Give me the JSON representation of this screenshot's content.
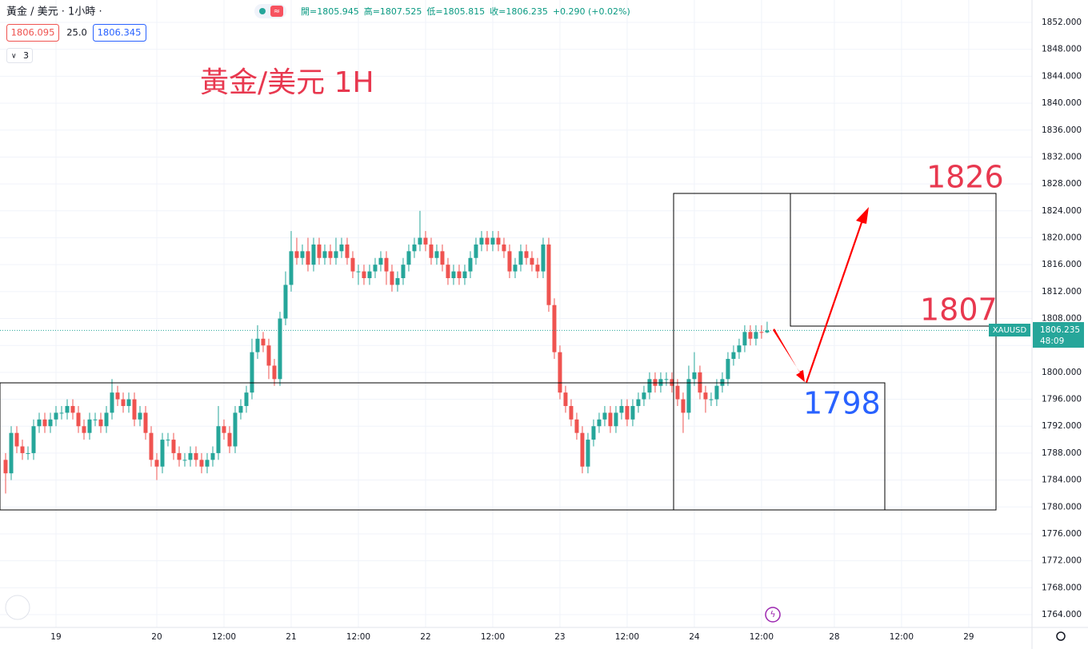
{
  "header": {
    "symbol": "黃金 / 美元 · 1小時 ·",
    "ohlc": [
      "開=1805.945",
      "高=1807.525",
      "低=1805.815",
      "收=1806.235",
      "+0.290 (+0.02%)"
    ],
    "bid": "1806.095",
    "spread": "25.0",
    "ask": "1806.345",
    "indicators": "3"
  },
  "chart_data": {
    "type": "candlestick",
    "up_color": "#26a69a",
    "down_color": "#ef5350",
    "grid": true,
    "annotations": {
      "title": "黃金/美元 1H",
      "target": 1826,
      "level": 1807,
      "support": 1798
    },
    "price_tag": {
      "symbol": "XAUUSD",
      "countdown": "48:09"
    },
    "xlim": [
      0,
      184.3
    ],
    "ylim": [
      1762.1,
      1855.33
    ],
    "xticks": [
      {
        "value": 10,
        "label": "19"
      },
      {
        "value": 28,
        "label": "20"
      },
      {
        "value": 40,
        "label": "12:00"
      },
      {
        "value": 52,
        "label": "21"
      },
      {
        "value": 64,
        "label": "12:00"
      },
      {
        "value": 76,
        "label": "22"
      },
      {
        "value": 88,
        "label": "12:00"
      },
      {
        "value": 100,
        "label": "23"
      },
      {
        "value": 112,
        "label": "12:00"
      },
      {
        "value": 124,
        "label": "24"
      },
      {
        "value": 136,
        "label": "12:00"
      },
      {
        "value": 149,
        "label": "28"
      },
      {
        "value": 161,
        "label": "12:00"
      },
      {
        "value": 173,
        "label": "29"
      }
    ],
    "yticks": [
      {
        "value": 1852,
        "label": "1852.000"
      },
      {
        "value": 1848,
        "label": "1848.000"
      },
      {
        "value": 1844,
        "label": "1844.000"
      },
      {
        "value": 1840,
        "label": "1840.000"
      },
      {
        "value": 1836,
        "label": "1836.000"
      },
      {
        "value": 1832,
        "label": "1832.000"
      },
      {
        "value": 1828,
        "label": "1828.000"
      },
      {
        "value": 1824,
        "label": "1824.000"
      },
      {
        "value": 1820,
        "label": "1820.000"
      },
      {
        "value": 1816,
        "label": "1816.000"
      },
      {
        "value": 1812,
        "label": "1812.000"
      },
      {
        "value": 1808,
        "label": "1808.000"
      },
      {
        "value": 1804,
        "label": "1804.000"
      },
      {
        "value": 1800,
        "label": "1800.000"
      },
      {
        "value": 1796,
        "label": "1796.000"
      },
      {
        "value": 1792,
        "label": "1792.000"
      },
      {
        "value": 1788,
        "label": "1788.000"
      },
      {
        "value": 1784,
        "label": "1784.000"
      },
      {
        "value": 1780,
        "label": "1780.000"
      },
      {
        "value": 1776,
        "label": "1776.000"
      },
      {
        "value": 1772,
        "label": "1772.000"
      },
      {
        "value": 1768,
        "label": "1768.000"
      },
      {
        "value": 1764,
        "label": "1764.000"
      }
    ],
    "x": [
      1,
      2,
      3,
      4,
      5,
      6,
      7,
      8,
      9,
      10,
      11,
      12,
      13,
      14,
      15,
      16,
      17,
      18,
      19,
      20,
      21,
      22,
      23,
      24,
      25,
      26,
      27,
      28,
      29,
      30,
      31,
      32,
      33,
      34,
      35,
      36,
      37,
      38,
      39,
      40,
      41,
      42,
      43,
      44,
      45,
      46,
      47,
      48,
      49,
      50,
      51,
      52,
      53,
      54,
      55,
      56,
      57,
      58,
      59,
      60,
      61,
      62,
      63,
      64,
      65,
      66,
      67,
      68,
      69,
      70,
      71,
      72,
      73,
      74,
      75,
      76,
      77,
      78,
      79,
      80,
      81,
      82,
      83,
      84,
      85,
      86,
      87,
      88,
      89,
      90,
      91,
      92,
      93,
      94,
      95,
      96,
      97,
      98,
      99,
      100,
      101,
      102,
      103,
      104,
      105,
      106,
      107,
      108,
      109,
      110,
      111,
      112,
      113,
      114,
      115,
      116,
      117,
      118,
      119,
      120,
      121,
      122,
      123,
      124,
      125,
      126,
      127,
      128,
      129,
      130,
      131,
      132,
      133,
      134,
      135,
      136,
      137
    ],
    "candles": [
      [
        1787,
        1788,
        1782,
        1785
      ],
      [
        1785,
        1792,
        1784,
        1791
      ],
      [
        1791,
        1792,
        1788,
        1789
      ],
      [
        1789,
        1790,
        1787,
        1788
      ],
      [
        1788,
        1789,
        1787,
        1788
      ],
      [
        1788,
        1793,
        1787,
        1792
      ],
      [
        1792,
        1794,
        1791,
        1793
      ],
      [
        1793,
        1794,
        1791,
        1792
      ],
      [
        1792,
        1794,
        1791,
        1793
      ],
      [
        1793,
        1795,
        1792,
        1794
      ],
      [
        1794,
        1795,
        1793,
        1794
      ],
      [
        1794,
        1796,
        1793,
        1795
      ],
      [
        1795,
        1796,
        1793,
        1794
      ],
      [
        1794,
        1795,
        1791,
        1792
      ],
      [
        1792,
        1793,
        1790,
        1791
      ],
      [
        1791,
        1794,
        1790,
        1793
      ],
      [
        1793,
        1794,
        1792,
        1793
      ],
      [
        1793,
        1794,
        1791,
        1792
      ],
      [
        1792,
        1795,
        1791,
        1794
      ],
      [
        1794,
        1799,
        1793,
        1797
      ],
      [
        1797,
        1798,
        1795,
        1796
      ],
      [
        1796,
        1797,
        1794,
        1795
      ],
      [
        1795,
        1797,
        1794,
        1796
      ],
      [
        1796,
        1797,
        1792,
        1793
      ],
      [
        1793,
        1795,
        1792,
        1794
      ],
      [
        1794,
        1795,
        1790,
        1791
      ],
      [
        1791,
        1792,
        1786,
        1787
      ],
      [
        1787,
        1788,
        1784,
        1786
      ],
      [
        1786,
        1791,
        1785,
        1790
      ],
      [
        1790,
        1791,
        1789,
        1790
      ],
      [
        1790,
        1791,
        1787,
        1788
      ],
      [
        1788,
        1789,
        1786,
        1787
      ],
      [
        1787,
        1788,
        1786,
        1787
      ],
      [
        1787,
        1789,
        1786,
        1788
      ],
      [
        1788,
        1789,
        1786,
        1787
      ],
      [
        1787,
        1788,
        1785,
        1786
      ],
      [
        1786,
        1788,
        1785,
        1787
      ],
      [
        1787,
        1789,
        1786,
        1788
      ],
      [
        1788,
        1795,
        1787,
        1792
      ],
      [
        1792,
        1793,
        1790,
        1791
      ],
      [
        1791,
        1792,
        1788,
        1789
      ],
      [
        1789,
        1795,
        1788,
        1794
      ],
      [
        1794,
        1796,
        1793,
        1795
      ],
      [
        1795,
        1798,
        1794,
        1797
      ],
      [
        1797,
        1805,
        1796,
        1803
      ],
      [
        1803,
        1807,
        1802,
        1805
      ],
      [
        1805,
        1806,
        1803,
        1804
      ],
      [
        1804,
        1805,
        1799,
        1801
      ],
      [
        1801,
        1802,
        1798,
        1799
      ],
      [
        1799,
        1809,
        1798,
        1808
      ],
      [
        1808,
        1815,
        1807,
        1813
      ],
      [
        1813,
        1821,
        1812,
        1818
      ],
      [
        1818,
        1820,
        1816,
        1817
      ],
      [
        1817,
        1819,
        1816,
        1818
      ],
      [
        1818,
        1820,
        1815,
        1816
      ],
      [
        1816,
        1820,
        1815,
        1819
      ],
      [
        1819,
        1820,
        1816,
        1817
      ],
      [
        1817,
        1819,
        1816,
        1818
      ],
      [
        1818,
        1819,
        1816,
        1817
      ],
      [
        1817,
        1820,
        1816,
        1818
      ],
      [
        1818,
        1820,
        1817,
        1819
      ],
      [
        1819,
        1820,
        1816,
        1817
      ],
      [
        1817,
        1818,
        1814,
        1815
      ],
      [
        1815,
        1816,
        1813,
        1815
      ],
      [
        1815,
        1816,
        1813,
        1814
      ],
      [
        1814,
        1816,
        1813,
        1815
      ],
      [
        1815,
        1817,
        1814,
        1816
      ],
      [
        1816,
        1818,
        1815,
        1817
      ],
      [
        1817,
        1818,
        1813,
        1815
      ],
      [
        1815,
        1816,
        1812,
        1813
      ],
      [
        1813,
        1815,
        1812,
        1814
      ],
      [
        1814,
        1817,
        1813,
        1816
      ],
      [
        1816,
        1819,
        1815,
        1818
      ],
      [
        1818,
        1820,
        1817,
        1819
      ],
      [
        1819,
        1824,
        1818,
        1820
      ],
      [
        1820,
        1821,
        1818,
        1819
      ],
      [
        1819,
        1820,
        1816,
        1817
      ],
      [
        1817,
        1819,
        1816,
        1818
      ],
      [
        1818,
        1819,
        1815,
        1816
      ],
      [
        1816,
        1817,
        1813,
        1814
      ],
      [
        1814,
        1816,
        1813,
        1815
      ],
      [
        1815,
        1816,
        1813,
        1814
      ],
      [
        1814,
        1816,
        1813,
        1815
      ],
      [
        1815,
        1818,
        1814,
        1817
      ],
      [
        1817,
        1820,
        1816,
        1819
      ],
      [
        1819,
        1821,
        1818,
        1820
      ],
      [
        1820,
        1821,
        1818,
        1819
      ],
      [
        1819,
        1821,
        1818,
        1820
      ],
      [
        1820,
        1821,
        1818,
        1819
      ],
      [
        1819,
        1820,
        1817,
        1818
      ],
      [
        1818,
        1819,
        1814,
        1815
      ],
      [
        1815,
        1817,
        1814,
        1816
      ],
      [
        1816,
        1819,
        1815,
        1818
      ],
      [
        1818,
        1819,
        1816,
        1817
      ],
      [
        1817,
        1818,
        1815,
        1816
      ],
      [
        1816,
        1817,
        1814,
        1815
      ],
      [
        1815,
        1820,
        1814,
        1819
      ],
      [
        1819,
        1820,
        1809,
        1810
      ],
      [
        1810,
        1811,
        1802,
        1803
      ],
      [
        1803,
        1804,
        1796,
        1797
      ],
      [
        1797,
        1798,
        1794,
        1795
      ],
      [
        1795,
        1796,
        1792,
        1793
      ],
      [
        1793,
        1794,
        1790,
        1791
      ],
      [
        1791,
        1792,
        1785,
        1786
      ],
      [
        1786,
        1791,
        1785,
        1790
      ],
      [
        1790,
        1793,
        1789,
        1792
      ],
      [
        1792,
        1794,
        1791,
        1793
      ],
      [
        1793,
        1795,
        1792,
        1794
      ],
      [
        1794,
        1795,
        1791,
        1792
      ],
      [
        1792,
        1795,
        1791,
        1794
      ],
      [
        1794,
        1796,
        1793,
        1795
      ],
      [
        1795,
        1796,
        1792,
        1793
      ],
      [
        1793,
        1796,
        1792,
        1795
      ],
      [
        1795,
        1797,
        1794,
        1796
      ],
      [
        1796,
        1798,
        1795,
        1797
      ],
      [
        1797,
        1800,
        1796,
        1799
      ],
      [
        1799,
        1800,
        1797,
        1798
      ],
      [
        1798,
        1800,
        1797,
        1799
      ],
      [
        1799,
        1800,
        1798,
        1799
      ],
      [
        1799,
        1800,
        1797,
        1798
      ],
      [
        1798,
        1799,
        1795,
        1796
      ],
      [
        1796,
        1797,
        1791,
        1794
      ],
      [
        1794,
        1801,
        1793,
        1799
      ],
      [
        1799,
        1803,
        1798,
        1800
      ],
      [
        1800,
        1801,
        1796,
        1797
      ],
      [
        1797,
        1798,
        1794,
        1796
      ],
      [
        1796,
        1797,
        1795,
        1796
      ],
      [
        1796,
        1799,
        1795,
        1798
      ],
      [
        1798,
        1800,
        1797,
        1799
      ],
      [
        1799,
        1803,
        1798,
        1802
      ],
      [
        1802,
        1804,
        1801,
        1803
      ],
      [
        1803,
        1805,
        1802,
        1804
      ],
      [
        1804,
        1807,
        1803,
        1806
      ],
      [
        1806,
        1807,
        1804,
        1805
      ],
      [
        1805,
        1807,
        1804,
        1806
      ],
      [
        1806,
        1807,
        1805,
        1805.945
      ],
      [
        1805.945,
        1807.525,
        1805.815,
        1806.235
      ]
    ]
  }
}
